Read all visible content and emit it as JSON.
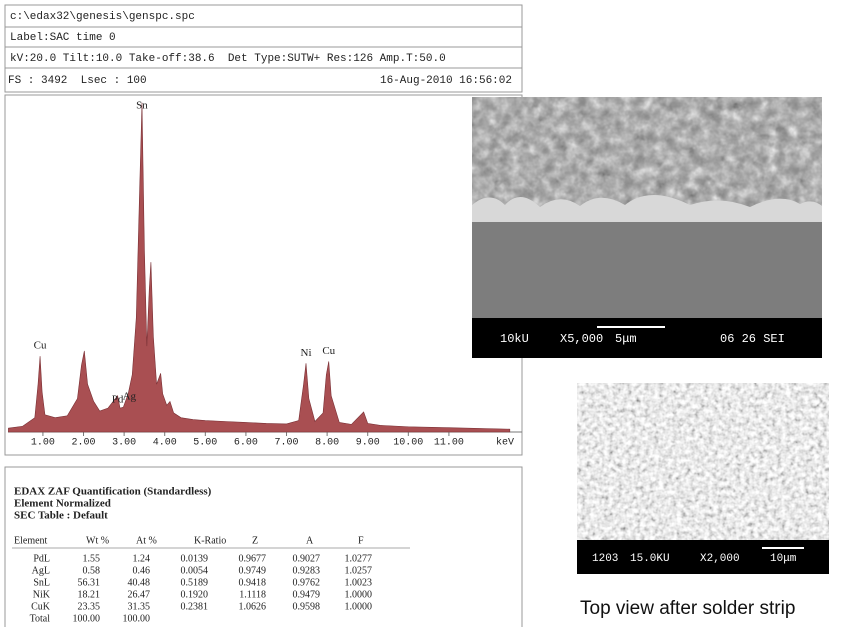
{
  "header": {
    "file": "c:\\edax32\\genesis\\genspc.spc",
    "label": "Label:SAC time 0",
    "settings": "kV:20.0 Tilt:10.0 Take-off:38.6  Det Type:SUTW+ Res:126 Amp.T:50.0",
    "fs": "FS : 3492  Lsec : 100",
    "date": "16-Aug-2010 16:56:02"
  },
  "chart_data": {
    "type": "area",
    "xlabel": "keV",
    "color": "#a94f52",
    "x": [
      0.15,
      0.5,
      0.8,
      0.88,
      0.93,
      0.98,
      1.05,
      1.3,
      1.6,
      1.85,
      1.95,
      2.02,
      2.1,
      2.25,
      2.4,
      2.6,
      2.84,
      2.9,
      2.98,
      3.1,
      3.2,
      3.3,
      3.38,
      3.44,
      3.5,
      3.56,
      3.62,
      3.66,
      3.72,
      3.8,
      3.9,
      3.95,
      4.05,
      4.13,
      4.22,
      4.4,
      4.7,
      5.0,
      5.5,
      6.0,
      6.5,
      7.0,
      7.3,
      7.42,
      7.48,
      7.55,
      7.7,
      7.9,
      7.98,
      8.04,
      8.1,
      8.3,
      8.6,
      8.9,
      9.0,
      9.3,
      10,
      11,
      12.5
    ],
    "values": [
      40,
      60,
      150,
      500,
      795,
      420,
      180,
      150,
      170,
      350,
      700,
      850,
      500,
      320,
      220,
      250,
      380,
      250,
      260,
      400,
      600,
      1200,
      2500,
      3450,
      1900,
      900,
      1500,
      1780,
      1000,
      500,
      615,
      400,
      280,
      320,
      200,
      150,
      130,
      120,
      110,
      100,
      90,
      85,
      120,
      500,
      720,
      350,
      110,
      200,
      600,
      740,
      380,
      100,
      80,
      210,
      90,
      70,
      55,
      45,
      30
    ],
    "xlim": [
      0.14,
      12.8
    ],
    "ylim": [
      0,
      3500
    ],
    "xticks": [
      {
        "value": 1,
        "label": "1.00"
      },
      {
        "value": 2,
        "label": "2.00"
      },
      {
        "value": 3,
        "label": "3.00"
      },
      {
        "value": 4,
        "label": "4.00"
      },
      {
        "value": 5,
        "label": "5.00"
      },
      {
        "value": 6,
        "label": "6.00"
      },
      {
        "value": 7,
        "label": "7.00"
      },
      {
        "value": 8,
        "label": "8.00"
      },
      {
        "value": 9,
        "label": "9.00"
      },
      {
        "value": 10,
        "label": "10.00"
      },
      {
        "value": 11,
        "label": "11.00"
      }
    ],
    "annotations": [
      {
        "text": "Sn",
        "x": 3.44
      },
      {
        "text": "Cu",
        "x": 0.93
      },
      {
        "text": "Ag",
        "x": 2.98
      },
      {
        "text": "Pd",
        "x": 2.84
      },
      {
        "text": "Ni",
        "x": 7.48
      },
      {
        "text": "Cu",
        "x": 8.04
      }
    ]
  },
  "table": {
    "title": [
      "EDAX ZAF Quantification (Standardless)",
      "Element Normalized",
      "SEC Table : Default"
    ],
    "header": [
      "Element",
      "Wt %",
      "At %",
      "K-Ratio",
      "Z",
      "A",
      "F"
    ],
    "rows": [
      [
        "PdL",
        "1.55",
        "1.24",
        "0.0139",
        "0.9677",
        "0.9027",
        "1.0277"
      ],
      [
        "AgL",
        "0.58",
        "0.46",
        "0.0054",
        "0.9749",
        "0.9283",
        "1.0257"
      ],
      [
        "SnL",
        "56.31",
        "40.48",
        "0.5189",
        "0.9418",
        "0.9762",
        "1.0023"
      ],
      [
        "NiK",
        "18.21",
        "26.47",
        "0.1920",
        "1.1118",
        "0.9479",
        "1.0000"
      ],
      [
        "CuK",
        "23.35",
        "31.35",
        "0.2381",
        "1.0626",
        "0.9598",
        "1.0000"
      ],
      [
        "Total",
        "100.00",
        "100.00"
      ]
    ]
  },
  "sem1": {
    "kv": "10kU",
    "mag": "X5,000",
    "scale": "5μm",
    "info": "06 26 SEI"
  },
  "sem2": {
    "id": "1203",
    "kv": "15.0KU",
    "mag": "X2,000",
    "scale": "10μm"
  },
  "caption": "Top view after solder strip"
}
